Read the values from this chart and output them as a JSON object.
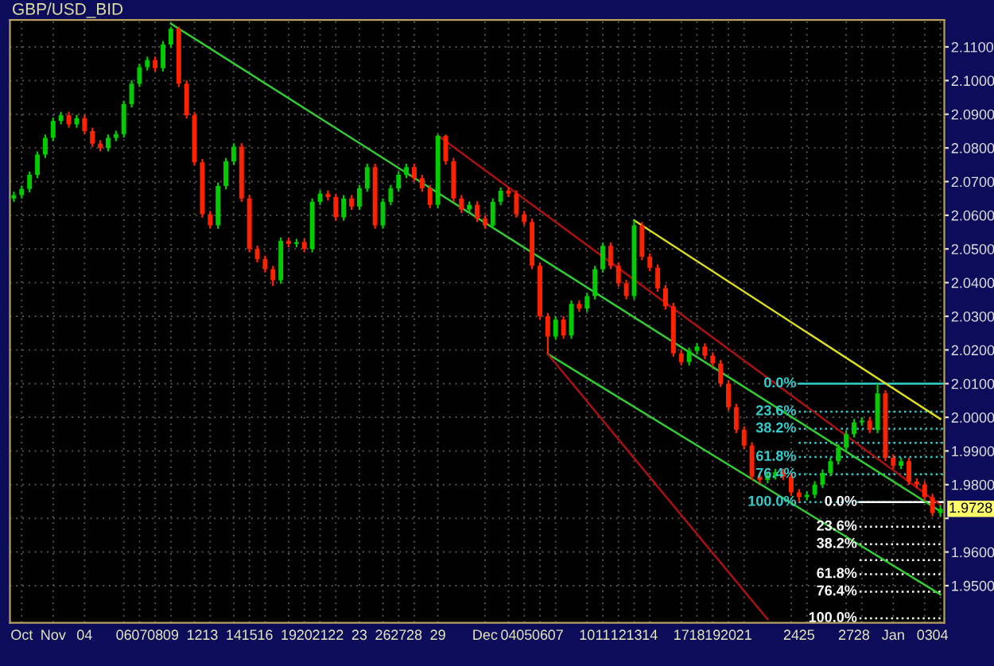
{
  "chart_data": {
    "type": "candlestick",
    "title": "GBP/USD_BID",
    "categories": [
      null,
      "Oct",
      null,
      null,
      null,
      "Nov",
      null,
      null,
      null,
      "04",
      null,
      null,
      null,
      null,
      "06",
      null,
      "07",
      null,
      "08",
      null,
      "09",
      null,
      null,
      "12",
      null,
      "13",
      null,
      null,
      "14",
      null,
      "15",
      null,
      "16",
      null,
      null,
      "19",
      null,
      "20",
      null,
      "21",
      null,
      "22",
      null,
      null,
      "23",
      null,
      null,
      "26",
      null,
      "27",
      null,
      "28",
      null,
      null,
      "29",
      null,
      null,
      null,
      null,
      null,
      "Dec",
      null,
      null,
      "04",
      null,
      "05",
      null,
      "06",
      null,
      "07",
      null,
      null,
      null,
      "10",
      null,
      "11",
      null,
      "12",
      null,
      "13",
      null,
      "14",
      null,
      null,
      null,
      "17",
      null,
      "18",
      null,
      "19",
      null,
      "20",
      null,
      "21",
      null,
      null,
      null,
      null,
      null,
      "24",
      null,
      "25",
      null,
      null,
      null,
      null,
      "27",
      null,
      "28",
      null,
      null,
      null,
      "Jan",
      null,
      null,
      null,
      "03",
      null,
      "04"
    ],
    "ohlc": [
      [
        2.065,
        2.067,
        2.064,
        2.066
      ],
      [
        2.066,
        2.0688,
        2.065,
        2.0678
      ],
      [
        2.0678,
        2.073,
        2.0668,
        2.072
      ],
      [
        2.072,
        2.079,
        2.071,
        2.078
      ],
      [
        2.078,
        2.084,
        2.077,
        2.083
      ],
      [
        2.083,
        2.089,
        2.082,
        2.088
      ],
      [
        2.088,
        2.0907,
        2.087,
        2.0897
      ],
      [
        2.0897,
        2.0907,
        2.086,
        2.087
      ],
      [
        2.087,
        2.0898,
        2.086,
        2.0888
      ],
      [
        2.0888,
        2.0898,
        2.084,
        2.085
      ],
      [
        2.085,
        2.086,
        2.0803,
        2.0813
      ],
      [
        2.0813,
        2.0823,
        2.079,
        2.08
      ],
      [
        2.08,
        2.084,
        2.079,
        2.083
      ],
      [
        2.083,
        2.0851,
        2.082,
        2.0841
      ],
      [
        2.0841,
        2.094,
        2.0831,
        2.093
      ],
      [
        2.093,
        2.1001,
        2.092,
        2.0991
      ],
      [
        2.0991,
        2.105,
        2.0981,
        2.104
      ],
      [
        2.104,
        2.1071,
        2.103,
        2.1061
      ],
      [
        2.1061,
        2.1071,
        2.1027,
        2.1037
      ],
      [
        2.1037,
        2.1117,
        2.1027,
        2.1107
      ],
      [
        2.1107,
        2.116,
        2.1097,
        2.1154
      ],
      [
        2.1154,
        2.116,
        2.0981,
        2.0991
      ],
      [
        2.0991,
        2.1001,
        2.0887,
        2.0897
      ],
      [
        2.0897,
        2.0907,
        2.0747,
        2.0757
      ],
      [
        2.0757,
        2.0767,
        2.0593,
        2.0603
      ],
      [
        2.0603,
        2.0613,
        2.056,
        2.057
      ],
      [
        2.057,
        2.0697,
        2.056,
        2.0687
      ],
      [
        2.0687,
        2.077,
        2.0677,
        2.076
      ],
      [
        2.076,
        2.0814,
        2.075,
        2.0804
      ],
      [
        2.0804,
        2.0814,
        2.064,
        2.065
      ],
      [
        2.065,
        2.066,
        2.049,
        2.05
      ],
      [
        2.05,
        2.051,
        2.046,
        2.047
      ],
      [
        2.047,
        2.048,
        2.043,
        2.044
      ],
      [
        2.044,
        2.045,
        2.039,
        2.0407
      ],
      [
        2.0407,
        2.0534,
        2.0397,
        2.0524
      ],
      [
        2.0524,
        2.0534,
        2.0505,
        2.0515
      ],
      [
        2.0515,
        2.053,
        2.0505,
        2.052
      ],
      [
        2.052,
        2.053,
        2.049,
        2.05
      ],
      [
        2.05,
        2.065,
        2.049,
        2.064
      ],
      [
        2.064,
        2.0674,
        2.063,
        2.0664
      ],
      [
        2.0664,
        2.0674,
        2.0644,
        2.0654
      ],
      [
        2.0654,
        2.0664,
        2.0584,
        2.0594
      ],
      [
        2.0594,
        2.066,
        2.0584,
        2.065
      ],
      [
        2.065,
        2.066,
        2.0616,
        2.0626
      ],
      [
        2.0626,
        2.069,
        2.0616,
        2.068
      ],
      [
        2.068,
        2.0753,
        2.067,
        2.0743
      ],
      [
        2.0743,
        2.0753,
        2.056,
        2.057
      ],
      [
        2.057,
        2.065,
        2.056,
        2.064
      ],
      [
        2.064,
        2.069,
        2.063,
        2.068
      ],
      [
        2.068,
        2.073,
        2.067,
        2.072
      ],
      [
        2.072,
        2.0753,
        2.071,
        2.0743
      ],
      [
        2.0743,
        2.0753,
        2.07,
        2.071
      ],
      [
        2.071,
        2.072,
        2.067,
        2.068
      ],
      [
        2.068,
        2.069,
        2.0621,
        2.0631
      ],
      [
        2.0631,
        2.084,
        2.0621,
        2.0836
      ],
      [
        2.0836,
        2.084,
        2.075,
        2.076
      ],
      [
        2.076,
        2.077,
        2.064,
        2.065
      ],
      [
        2.065,
        2.066,
        2.0607,
        2.0617
      ],
      [
        2.0617,
        2.0641,
        2.0607,
        2.0631
      ],
      [
        2.0631,
        2.0641,
        2.058,
        2.059
      ],
      [
        2.059,
        2.06,
        2.056,
        2.057
      ],
      [
        2.057,
        2.065,
        2.056,
        2.064
      ],
      [
        2.064,
        2.0683,
        2.063,
        2.0673
      ],
      [
        2.0673,
        2.0683,
        2.0654,
        2.0664
      ],
      [
        2.0664,
        2.0674,
        2.0593,
        2.0603
      ],
      [
        2.0603,
        2.0613,
        2.057,
        2.058
      ],
      [
        2.058,
        2.059,
        2.044,
        2.045
      ],
      [
        2.045,
        2.046,
        2.029,
        2.03
      ],
      [
        2.03,
        2.031,
        2.0188,
        2.024
      ],
      [
        2.024,
        2.03,
        2.023,
        2.029
      ],
      [
        2.029,
        2.03,
        2.0233,
        2.0243
      ],
      [
        2.0243,
        2.0347,
        2.0233,
        2.0337
      ],
      [
        2.0337,
        2.0347,
        2.0313,
        2.0323
      ],
      [
        2.0323,
        2.037,
        2.0313,
        2.036
      ],
      [
        2.036,
        2.045,
        2.035,
        2.044
      ],
      [
        2.044,
        2.0519,
        2.043,
        2.0509
      ],
      [
        2.0509,
        2.0519,
        2.044,
        2.045
      ],
      [
        2.045,
        2.046,
        2.0388,
        2.0398
      ],
      [
        2.0398,
        2.0408,
        2.035,
        2.036
      ],
      [
        2.036,
        2.0585,
        2.035,
        2.057
      ],
      [
        2.057,
        2.058,
        2.0467,
        2.0477
      ],
      [
        2.0477,
        2.0487,
        2.0434,
        2.0444
      ],
      [
        2.0444,
        2.0454,
        2.0373,
        2.0383
      ],
      [
        2.0383,
        2.0393,
        2.032,
        2.033
      ],
      [
        2.033,
        2.034,
        2.018,
        2.019
      ],
      [
        2.019,
        2.02,
        2.0154,
        2.0164
      ],
      [
        2.0164,
        2.0207,
        2.0154,
        2.0197
      ],
      [
        2.0197,
        2.022,
        2.0187,
        2.021
      ],
      [
        2.021,
        2.022,
        2.0173,
        2.0183
      ],
      [
        2.0183,
        2.0193,
        2.015,
        2.016
      ],
      [
        2.016,
        2.017,
        2.009,
        2.01
      ],
      [
        2.01,
        2.011,
        2.002,
        2.003
      ],
      [
        2.003,
        2.004,
        1.9953,
        1.9963
      ],
      [
        1.9963,
        1.9973,
        1.9906,
        1.9916
      ],
      [
        1.9916,
        1.9926,
        1.9814,
        1.9824
      ],
      [
        1.9824,
        1.9834,
        1.9804,
        1.9814
      ],
      [
        1.9814,
        1.9835,
        1.9804,
        1.9825
      ],
      [
        1.9825,
        1.9847,
        1.9815,
        1.9837
      ],
      [
        1.9837,
        1.9847,
        1.9814,
        1.9824
      ],
      [
        1.9824,
        1.9834,
        1.9767,
        1.9777
      ],
      [
        1.9777,
        1.9787,
        1.9748,
        1.9763
      ],
      [
        1.9763,
        1.978,
        1.9753,
        1.977
      ],
      [
        1.977,
        1.981,
        1.976,
        1.98
      ],
      [
        1.98,
        1.9845,
        1.979,
        1.9835
      ],
      [
        1.9835,
        1.988,
        1.9825,
        1.987
      ],
      [
        1.987,
        1.992,
        1.986,
        1.991
      ],
      [
        1.991,
        1.996,
        1.99,
        1.995
      ],
      [
        1.995,
        1.9995,
        1.994,
        1.9985
      ],
      [
        1.9985,
        2.0,
        1.9975,
        1.999
      ],
      [
        1.999,
        2.0,
        1.9953,
        1.9963
      ],
      [
        1.9963,
        2.01,
        1.9953,
        2.0071
      ],
      [
        2.0071,
        2.0081,
        1.987,
        1.988
      ],
      [
        1.988,
        1.989,
        1.9846,
        1.9856
      ],
      [
        1.9856,
        1.988,
        1.9846,
        1.987
      ],
      [
        1.987,
        1.988,
        1.9799,
        1.9809
      ],
      [
        1.9809,
        1.9819,
        1.979,
        1.98
      ],
      [
        1.98,
        1.981,
        1.9753,
        1.9763
      ],
      [
        1.9763,
        1.9773,
        1.9706,
        1.9716
      ],
      [
        1.9716,
        1.9738,
        1.9706,
        1.9728
      ]
    ],
    "colors": [
      "#00cc00",
      "#00cc00",
      "#00cc00",
      "#00cc00",
      "#00cc00",
      "#00cc00",
      "#00cc00",
      "#ff2200",
      "#00cc00",
      "#ff2200",
      "#ff2200",
      "#ff2200",
      "#00cc00",
      "#00cc00",
      "#00cc00",
      "#00cc00",
      "#00cc00",
      "#00cc00",
      "#ff2200",
      "#00cc00",
      "#00cc00",
      "#ff2200",
      "#ff2200",
      "#ff2200",
      "#ff2200",
      "#ff2200",
      "#00cc00",
      "#00cc00",
      "#00cc00",
      "#ff2200",
      "#ff2200",
      "#ff2200",
      "#ff2200",
      "#ff2200",
      "#00cc00",
      "#ff2200",
      "#00cc00",
      "#ff2200",
      "#00cc00",
      "#00cc00",
      "#ff2200",
      "#ff2200",
      "#00cc00",
      "#ff2200",
      "#00cc00",
      "#00cc00",
      "#ff2200",
      "#00cc00",
      "#00cc00",
      "#00cc00",
      "#00cc00",
      "#ff2200",
      "#ff2200",
      "#ff2200",
      "#00cc00",
      "#ff2200",
      "#ff2200",
      "#ff2200",
      "#00cc00",
      "#ff2200",
      "#ff2200",
      "#00cc00",
      "#00cc00",
      "#ff2200",
      "#ff2200",
      "#ff2200",
      "#ff2200",
      "#ff2200",
      "#ff2200",
      "#00cc00",
      "#ff2200",
      "#00cc00",
      "#ff2200",
      "#00cc00",
      "#00cc00",
      "#00cc00",
      "#ff2200",
      "#ff2200",
      "#ff2200",
      "#00cc00",
      "#ff2200",
      "#ff2200",
      "#ff2200",
      "#ff2200",
      "#ff2200",
      "#ff2200",
      "#00cc00",
      "#00cc00",
      "#ff2200",
      "#ff2200",
      "#ff2200",
      "#ff2200",
      "#ff2200",
      "#ff2200",
      "#ff2200",
      "#ff2200",
      "#00cc00",
      "#00cc00",
      "#ff2200",
      "#ff2200",
      "#ff2200",
      "#00cc00",
      "#00cc00",
      "#00cc00",
      "#00cc00",
      "#00cc00",
      "#00cc00",
      "#00cc00",
      "#00cc00",
      "#ff2200",
      "#00cc00",
      "#ff2200",
      "#ff2200",
      "#00cc00",
      "#ff2200",
      "#ff2200",
      "#ff2200",
      "#ff2200",
      "#00cc00"
    ],
    "series": [
      {
        "type": "line",
        "color": "#33cc33",
        "values": [
          null,
          null,
          null,
          null,
          null,
          null,
          null,
          null,
          null,
          null,
          null,
          null,
          null,
          null,
          null,
          null,
          null,
          null,
          null,
          null,
          2.1169,
          null,
          null,
          null,
          null,
          null,
          null,
          null,
          null,
          null,
          null,
          null,
          null,
          null,
          null,
          null,
          null,
          null,
          null,
          null,
          null,
          null,
          null,
          null,
          null,
          null,
          null,
          null,
          null,
          null,
          null,
          null,
          null,
          null,
          null,
          null,
          null,
          null,
          null,
          null,
          null,
          null,
          null,
          null,
          null,
          null,
          null,
          null,
          null,
          null,
          null,
          null,
          null,
          null,
          null,
          null,
          null,
          null,
          null,
          null,
          null,
          null,
          null,
          null,
          null,
          null,
          null,
          null,
          null,
          null,
          null,
          null,
          null,
          null,
          null,
          null,
          null,
          null,
          null,
          null,
          null,
          null,
          null,
          null,
          null,
          null,
          null,
          null,
          null,
          null,
          null,
          null,
          null,
          null,
          null,
          null,
          null,
          null,
          1.9721
        ]
      },
      {
        "type": "line",
        "color": "#dddd22",
        "values": [
          null,
          null,
          null,
          null,
          null,
          null,
          null,
          null,
          null,
          null,
          null,
          null,
          null,
          null,
          null,
          null,
          null,
          null,
          null,
          null,
          null,
          null,
          null,
          null,
          null,
          null,
          null,
          null,
          null,
          null,
          null,
          null,
          null,
          null,
          null,
          null,
          null,
          null,
          null,
          null,
          null,
          null,
          null,
          null,
          null,
          null,
          null,
          null,
          null,
          null,
          null,
          null,
          null,
          null,
          null,
          null,
          null,
          null,
          null,
          null,
          null,
          null,
          null,
          null,
          null,
          null,
          null,
          null,
          null,
          null,
          null,
          null,
          null,
          null,
          null,
          null,
          null,
          null,
          null,
          2.0585,
          null,
          null,
          null,
          null,
          null,
          null,
          null,
          null,
          null,
          null,
          null,
          null,
          null,
          null,
          null,
          null,
          null,
          null,
          null,
          null,
          null,
          null,
          null,
          null,
          null,
          null,
          null,
          null,
          null,
          null,
          null,
          null,
          null,
          null,
          null,
          null,
          null,
          null,
          1.9995
        ]
      },
      {
        "type": "line",
        "color": "#aa1111",
        "values": [
          null,
          null,
          null,
          null,
          null,
          null,
          null,
          null,
          null,
          null,
          null,
          null,
          null,
          null,
          null,
          null,
          null,
          null,
          null,
          null,
          null,
          null,
          null,
          null,
          null,
          null,
          null,
          null,
          null,
          null,
          null,
          null,
          null,
          null,
          null,
          null,
          null,
          null,
          null,
          null,
          null,
          null,
          null,
          null,
          null,
          null,
          null,
          null,
          null,
          null,
          null,
          null,
          null,
          null,
          2.0837,
          null,
          null,
          null,
          null,
          null,
          null,
          null,
          null,
          null,
          null,
          null,
          null,
          null,
          null,
          null,
          null,
          null,
          null,
          null,
          null,
          null,
          null,
          null,
          null,
          null,
          null,
          null,
          null,
          null,
          null,
          null,
          null,
          null,
          null,
          null,
          null,
          null,
          null,
          null,
          null,
          null,
          null,
          null,
          null,
          null,
          null,
          null,
          null,
          null,
          null,
          null,
          null,
          null,
          null,
          null,
          null,
          null,
          null,
          null,
          null,
          null,
          null,
          null,
          1.974
        ]
      },
      {
        "type": "line",
        "color": "#33cc33",
        "values": [
          null,
          null,
          null,
          null,
          null,
          null,
          null,
          null,
          null,
          null,
          null,
          null,
          null,
          null,
          null,
          null,
          null,
          null,
          null,
          null,
          null,
          null,
          null,
          null,
          null,
          null,
          null,
          null,
          null,
          null,
          null,
          null,
          null,
          null,
          null,
          null,
          null,
          null,
          null,
          null,
          null,
          null,
          null,
          null,
          null,
          null,
          null,
          null,
          null,
          null,
          null,
          null,
          null,
          null,
          null,
          null,
          null,
          null,
          null,
          null,
          null,
          null,
          null,
          null,
          null,
          null,
          null,
          null,
          2.0188,
          null,
          null,
          null,
          null,
          null,
          null,
          null,
          null,
          null,
          null,
          null,
          null,
          null,
          null,
          null,
          null,
          null,
          null,
          null,
          null,
          null,
          null,
          null,
          null,
          null,
          null,
          null,
          null,
          null,
          null,
          null,
          null,
          null,
          null,
          null,
          null,
          null,
          null,
          null,
          null,
          null,
          null,
          null,
          null,
          null,
          null,
          null,
          null,
          null,
          1.9474
        ]
      },
      {
        "type": "line",
        "color": "#aa1111",
        "values": [
          null,
          null,
          null,
          null,
          null,
          null,
          null,
          null,
          null,
          null,
          null,
          null,
          null,
          null,
          null,
          null,
          null,
          null,
          null,
          null,
          null,
          null,
          null,
          null,
          null,
          null,
          null,
          null,
          null,
          null,
          null,
          null,
          null,
          null,
          null,
          null,
          null,
          null,
          null,
          null,
          null,
          null,
          null,
          null,
          null,
          null,
          null,
          null,
          null,
          null,
          null,
          null,
          null,
          null,
          null,
          null,
          null,
          null,
          null,
          null,
          null,
          null,
          null,
          null,
          null,
          null,
          null,
          null,
          2.0188,
          null,
          null,
          null,
          null,
          null,
          null,
          null,
          null,
          null,
          null,
          null,
          null,
          null,
          null,
          null,
          null,
          null,
          null,
          null,
          null,
          null,
          null,
          null,
          null,
          null,
          null,
          null,
          1.94,
          null,
          null,
          null,
          null,
          null,
          null,
          null,
          null,
          null,
          null,
          null,
          null,
          null,
          null,
          null,
          null,
          null,
          null,
          null,
          null,
          null,
          null
        ]
      }
    ],
    "ref_lines": [
      {
        "axis": "y",
        "value": 2.01,
        "color": "#33cccc",
        "line_style": "solid"
      },
      {
        "axis": "y",
        "value": 2.0017,
        "color": "#33cccc",
        "line_style": "dotted"
      },
      {
        "axis": "y",
        "value": 1.9966,
        "color": "#33cccc",
        "line_style": "dotted"
      },
      {
        "axis": "y",
        "value": 1.9882,
        "color": "#33cccc",
        "line_style": "dotted"
      },
      {
        "axis": "y",
        "value": 1.9831,
        "color": "#33cccc",
        "line_style": "dotted"
      },
      {
        "axis": "y",
        "value": 1.9748,
        "color": "#33cccc",
        "line_style": "dotted"
      },
      {
        "axis": "y",
        "value": 1.9748,
        "color": "#ffffff",
        "line_style": "solid"
      },
      {
        "axis": "y",
        "value": 1.9675,
        "color": "#ffffff",
        "line_style": "dotted"
      },
      {
        "axis": "y",
        "value": 1.9623,
        "color": "#ffffff",
        "line_style": "dotted"
      },
      {
        "axis": "y",
        "value": 1.9534,
        "color": "#ffffff",
        "line_style": "dotted"
      },
      {
        "axis": "y",
        "value": 1.9482,
        "color": "#ffffff",
        "line_style": "dotted"
      },
      {
        "axis": "y",
        "value": 1.9403,
        "color": "#ffffff",
        "line_style": "dotted"
      },
      {
        "axis": "y",
        "value": 1.9924,
        "color": "#33cccc",
        "line_style": "dotted"
      },
      {
        "axis": "y",
        "value": 1.9576,
        "color": "#ffffff",
        "line_style": "dotted"
      }
    ],
    "annotations": [
      "0.0%",
      "23.6%",
      "38.2%",
      "61.8%",
      "76.4%",
      "100.0%",
      "0.0%",
      "23.6%",
      "38.2%",
      "61.8%",
      "76.4%",
      "100.0%",
      {
        "text": "1.9728",
        "y": 1.9728
      }
    ],
    "ylim": [
      1.939,
      2.118
    ],
    "yticks": [
      {
        "value": 1.95,
        "label": "1.9500"
      },
      {
        "value": 1.96,
        "label": "1.9600"
      },
      {
        "value": 1.97,
        "label": null
      },
      {
        "value": 1.98,
        "label": "1.9800"
      },
      {
        "value": 1.99,
        "label": "1.9900"
      },
      {
        "value": 2.0,
        "label": "2.0000"
      },
      {
        "value": 2.01,
        "label": "2.0100"
      },
      {
        "value": 2.02,
        "label": "2.0200"
      },
      {
        "value": 2.03,
        "label": "2.0300"
      },
      {
        "value": 2.04,
        "label": "2.0400"
      },
      {
        "value": 2.05,
        "label": "2.0500"
      },
      {
        "value": 2.06,
        "label": "2.0600"
      },
      {
        "value": 2.07,
        "label": "2.0700"
      },
      {
        "value": 2.08,
        "label": "2.0800"
      },
      {
        "value": 2.09,
        "label": "2.0900"
      },
      {
        "value": 2.1,
        "label": "2.1000"
      },
      {
        "value": 2.11,
        "label": "2.1100"
      }
    ],
    "grid": true
  }
}
